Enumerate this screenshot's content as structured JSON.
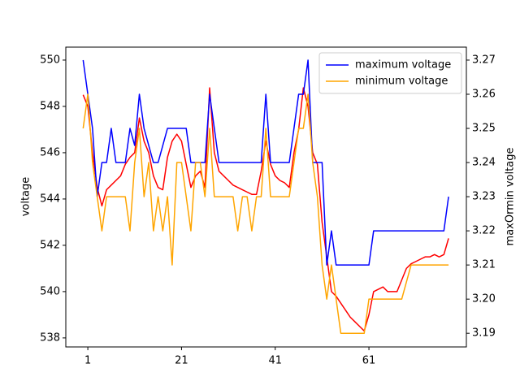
{
  "chart_data": {
    "type": "line",
    "x": [
      0,
      1,
      2,
      3,
      4,
      5,
      6,
      7,
      8,
      9,
      10,
      11,
      12,
      13,
      14,
      15,
      16,
      17,
      18,
      19,
      20,
      21,
      22,
      23,
      24,
      25,
      26,
      27,
      28,
      29,
      30,
      31,
      32,
      33,
      34,
      35,
      36,
      37,
      38,
      39,
      40,
      41,
      42,
      43,
      44,
      45,
      46,
      47,
      48,
      49,
      50,
      51,
      52,
      53,
      54,
      55,
      56,
      57,
      58,
      59,
      60,
      61,
      62,
      63,
      64,
      65,
      66,
      67,
      68,
      69,
      70,
      71,
      72,
      73,
      74,
      75,
      76,
      77,
      78
    ],
    "xlim": [
      -3.7,
      81.8
    ],
    "xticks": [
      1,
      21,
      41,
      61
    ],
    "ylabel": "voltage",
    "y2label": "maxOrmin voltage",
    "ylim": [
      537.61,
      550.56
    ],
    "yticks": [
      538,
      540,
      542,
      544,
      546,
      548,
      550
    ],
    "y2lim": [
      3.186,
      3.2738
    ],
    "y2ticks": [
      3.19,
      {
        "value": 3.2,
        "label": "3.20"
      },
      3.21,
      3.22,
      3.23,
      3.24,
      3.25,
      3.26,
      3.27
    ],
    "legend": "upper right",
    "series": [
      {
        "color": "#ff0000",
        "values": [
          548.5,
          548,
          546,
          544.5,
          543.7,
          544.4,
          544.6,
          544.8,
          545,
          545.5,
          545.8,
          546,
          547.5,
          546.5,
          546,
          545,
          544.5,
          544.4,
          545.8,
          546.5,
          546.8,
          546.5,
          545.5,
          544.5,
          545,
          545.2,
          544.5,
          548.8,
          546,
          545.2,
          545,
          544.8,
          544.6,
          544.5,
          544.4,
          544.3,
          544.2,
          544.2,
          545.2,
          546.5,
          545.5,
          545,
          544.8,
          544.7,
          544.5,
          546,
          547,
          548.8,
          548,
          546,
          545.5,
          543,
          541.5,
          540,
          539.8,
          539.5,
          539.2,
          538.9,
          538.7,
          538.5,
          538.3,
          539,
          540,
          540.1,
          540.2,
          540,
          540,
          540,
          540.5,
          541,
          541.2,
          541.3,
          541.4,
          541.5,
          541.5,
          541.6,
          541.5,
          541.6,
          542.3
        ]
      },
      {
        "name": "maximum voltage",
        "color": "#0000ff",
        "axis": "y2",
        "values": [
          3.27,
          3.26,
          3.25,
          3.23,
          3.24,
          3.24,
          3.25,
          3.24,
          3.24,
          3.24,
          3.25,
          3.245,
          3.26,
          3.25,
          3.245,
          3.24,
          3.24,
          3.245,
          3.25,
          3.25,
          3.25,
          3.25,
          3.25,
          3.24,
          3.24,
          3.24,
          3.24,
          3.26,
          3.25,
          3.24,
          3.24,
          3.24,
          3.24,
          3.24,
          3.24,
          3.24,
          3.24,
          3.24,
          3.24,
          3.26,
          3.24,
          3.24,
          3.24,
          3.24,
          3.24,
          3.25,
          3.26,
          3.26,
          3.27,
          3.24,
          3.24,
          3.24,
          3.21,
          3.22,
          3.21,
          3.21,
          3.21,
          3.21,
          3.21,
          3.21,
          3.21,
          3.21,
          3.22,
          3.22,
          3.22,
          3.22,
          3.22,
          3.22,
          3.22,
          3.22,
          3.22,
          3.22,
          3.22,
          3.22,
          3.22,
          3.22,
          3.22,
          3.22,
          3.23
        ]
      },
      {
        "name": "minimum voltage",
        "color": "#ffa500",
        "axis": "y2",
        "values": [
          3.25,
          3.26,
          3.24,
          3.23,
          3.22,
          3.23,
          3.23,
          3.23,
          3.23,
          3.23,
          3.22,
          3.24,
          3.25,
          3.23,
          3.24,
          3.22,
          3.23,
          3.22,
          3.23,
          3.21,
          3.24,
          3.24,
          3.23,
          3.22,
          3.24,
          3.24,
          3.23,
          3.25,
          3.23,
          3.23,
          3.23,
          3.23,
          3.23,
          3.22,
          3.23,
          3.23,
          3.22,
          3.23,
          3.23,
          3.25,
          3.23,
          3.23,
          3.23,
          3.23,
          3.23,
          3.24,
          3.25,
          3.25,
          3.26,
          3.24,
          3.23,
          3.21,
          3.2,
          3.21,
          3.2,
          3.19,
          3.19,
          3.19,
          3.19,
          3.19,
          3.19,
          3.2,
          3.2,
          3.2,
          3.2,
          3.2,
          3.2,
          3.2,
          3.2,
          3.205,
          3.21,
          3.21,
          3.21,
          3.21,
          3.21,
          3.21,
          3.21,
          3.21,
          3.21
        ]
      }
    ]
  }
}
